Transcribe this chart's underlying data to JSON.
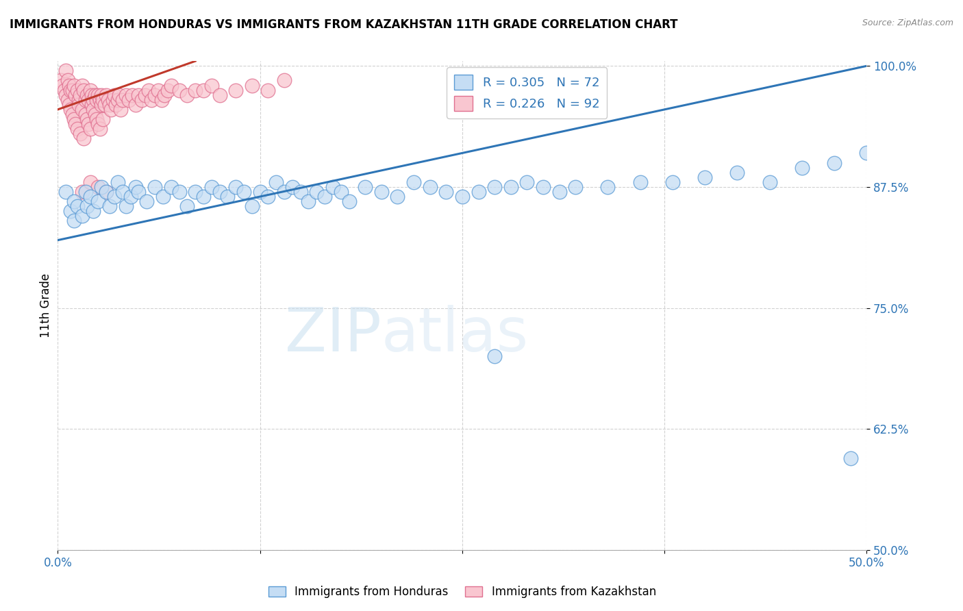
{
  "title": "IMMIGRANTS FROM HONDURAS VS IMMIGRANTS FROM KAZAKHSTAN 11TH GRADE CORRELATION CHART",
  "source": "Source: ZipAtlas.com",
  "ylabel": "11th Grade",
  "xlim": [
    0.0,
    0.5
  ],
  "ylim": [
    0.5,
    1.005
  ],
  "xtick_vals": [
    0.0,
    0.125,
    0.25,
    0.375,
    0.5
  ],
  "xtick_labels": [
    "0.0%",
    "",
    "",
    "",
    "50.0%"
  ],
  "ytick_vals": [
    0.5,
    0.625,
    0.75,
    0.875,
    1.0
  ],
  "ytick_labels": [
    "50.0%",
    "62.5%",
    "75.0%",
    "87.5%",
    "100.0%"
  ],
  "honduras_fill": "#c5ddf4",
  "honduras_edge": "#5b9bd5",
  "kazakhstan_fill": "#f9c6d0",
  "kazakhstan_edge": "#e07090",
  "trend_blue": "#2e75b6",
  "trend_pink": "#c0392b",
  "watermark_color": "#d8eaf8",
  "grid_color": "#cccccc",
  "background": "#ffffff",
  "title_color": "#000000",
  "tick_color": "#2e75b6",
  "ylabel_color": "#000000",
  "source_color": "#888888",
  "blue_trend_x": [
    0.0,
    0.5
  ],
  "blue_trend_y": [
    0.82,
    1.0
  ],
  "pink_trend_x": [
    0.0,
    0.085
  ],
  "pink_trend_y": [
    0.955,
    1.005
  ],
  "legend_top_blue_label": "R = 0.305   N = 72",
  "legend_top_pink_label": "R = 0.226   N = 92",
  "legend_bot_blue": "Immigrants from Honduras",
  "legend_bot_pink": "Immigrants from Kazakhstan",
  "honduras_x": [
    0.005,
    0.008,
    0.01,
    0.01,
    0.012,
    0.015,
    0.017,
    0.018,
    0.02,
    0.022,
    0.025,
    0.027,
    0.03,
    0.032,
    0.035,
    0.037,
    0.04,
    0.042,
    0.045,
    0.048,
    0.05,
    0.055,
    0.06,
    0.065,
    0.07,
    0.075,
    0.08,
    0.085,
    0.09,
    0.095,
    0.1,
    0.105,
    0.11,
    0.115,
    0.12,
    0.125,
    0.13,
    0.135,
    0.14,
    0.145,
    0.15,
    0.155,
    0.16,
    0.165,
    0.17,
    0.175,
    0.18,
    0.19,
    0.2,
    0.21,
    0.22,
    0.23,
    0.24,
    0.25,
    0.26,
    0.27,
    0.28,
    0.29,
    0.3,
    0.31,
    0.32,
    0.34,
    0.36,
    0.38,
    0.4,
    0.42,
    0.44,
    0.46,
    0.48,
    0.5,
    0.27,
    0.49
  ],
  "honduras_y": [
    0.87,
    0.85,
    0.86,
    0.84,
    0.855,
    0.845,
    0.87,
    0.855,
    0.865,
    0.85,
    0.86,
    0.875,
    0.87,
    0.855,
    0.865,
    0.88,
    0.87,
    0.855,
    0.865,
    0.875,
    0.87,
    0.86,
    0.875,
    0.865,
    0.875,
    0.87,
    0.855,
    0.87,
    0.865,
    0.875,
    0.87,
    0.865,
    0.875,
    0.87,
    0.855,
    0.87,
    0.865,
    0.88,
    0.87,
    0.875,
    0.87,
    0.86,
    0.87,
    0.865,
    0.875,
    0.87,
    0.86,
    0.875,
    0.87,
    0.865,
    0.88,
    0.875,
    0.87,
    0.865,
    0.87,
    0.875,
    0.875,
    0.88,
    0.875,
    0.87,
    0.875,
    0.875,
    0.88,
    0.88,
    0.885,
    0.89,
    0.88,
    0.895,
    0.9,
    0.91,
    0.7,
    0.595
  ],
  "kazakhstan_x": [
    0.002,
    0.003,
    0.004,
    0.005,
    0.005,
    0.006,
    0.006,
    0.007,
    0.007,
    0.008,
    0.008,
    0.009,
    0.009,
    0.01,
    0.01,
    0.011,
    0.011,
    0.012,
    0.012,
    0.013,
    0.013,
    0.014,
    0.014,
    0.015,
    0.015,
    0.016,
    0.016,
    0.017,
    0.017,
    0.018,
    0.018,
    0.019,
    0.019,
    0.02,
    0.02,
    0.021,
    0.021,
    0.022,
    0.022,
    0.023,
    0.023,
    0.024,
    0.024,
    0.025,
    0.025,
    0.026,
    0.026,
    0.027,
    0.027,
    0.028,
    0.028,
    0.029,
    0.03,
    0.031,
    0.032,
    0.033,
    0.034,
    0.035,
    0.036,
    0.037,
    0.038,
    0.039,
    0.04,
    0.042,
    0.044,
    0.046,
    0.048,
    0.05,
    0.052,
    0.054,
    0.056,
    0.058,
    0.06,
    0.062,
    0.064,
    0.066,
    0.068,
    0.07,
    0.075,
    0.08,
    0.085,
    0.09,
    0.095,
    0.1,
    0.11,
    0.12,
    0.13,
    0.14,
    0.015,
    0.02,
    0.025,
    0.03
  ],
  "kazakhstan_y": [
    0.985,
    0.98,
    0.975,
    0.995,
    0.97,
    0.985,
    0.965,
    0.98,
    0.96,
    0.975,
    0.955,
    0.975,
    0.95,
    0.98,
    0.945,
    0.97,
    0.94,
    0.975,
    0.935,
    0.965,
    0.96,
    0.97,
    0.93,
    0.98,
    0.955,
    0.975,
    0.925,
    0.965,
    0.95,
    0.97,
    0.945,
    0.965,
    0.94,
    0.975,
    0.935,
    0.97,
    0.96,
    0.965,
    0.955,
    0.97,
    0.95,
    0.965,
    0.945,
    0.97,
    0.94,
    0.965,
    0.935,
    0.97,
    0.96,
    0.965,
    0.945,
    0.96,
    0.97,
    0.965,
    0.96,
    0.955,
    0.965,
    0.97,
    0.96,
    0.965,
    0.97,
    0.955,
    0.965,
    0.97,
    0.965,
    0.97,
    0.96,
    0.97,
    0.965,
    0.97,
    0.975,
    0.965,
    0.97,
    0.975,
    0.965,
    0.97,
    0.975,
    0.98,
    0.975,
    0.97,
    0.975,
    0.975,
    0.98,
    0.97,
    0.975,
    0.98,
    0.975,
    0.985,
    0.87,
    0.88,
    0.875,
    0.87
  ]
}
